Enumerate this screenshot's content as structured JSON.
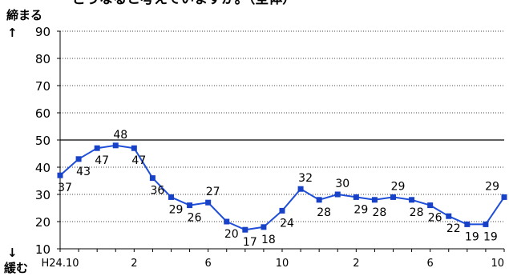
{
  "title": "どうなると考えていますか。（全体）",
  "axis": {
    "top_label": "締まる",
    "top_arrow": "↑",
    "bottom_label": "緩む",
    "bottom_arrow": "↓"
  },
  "colors": {
    "line": "#1f4ed8",
    "marker": "#1742c8",
    "reference_line": "#000000",
    "grid": "#000000",
    "text": "#000000"
  },
  "chart_data": {
    "type": "line",
    "title": "どうなると考えていますか。（全体）",
    "ylim": [
      10,
      90
    ],
    "yticks": [
      10,
      20,
      30,
      40,
      50,
      60,
      70,
      80,
      90
    ],
    "grid": "dotted horizontal",
    "reference_line": 50,
    "x_tick_labels": [
      {
        "index": 0,
        "label": "H24.10"
      },
      {
        "index": 4,
        "label": "2"
      },
      {
        "index": 8,
        "label": "6"
      },
      {
        "index": 12,
        "label": "10"
      },
      {
        "index": 16,
        "label": "2"
      },
      {
        "index": 20,
        "label": "6"
      },
      {
        "index": 24,
        "label": "10"
      }
    ],
    "series": [
      {
        "values": [
          37,
          43,
          47,
          48,
          47,
          36,
          29,
          26,
          27,
          20,
          17,
          18,
          24,
          32,
          28,
          30,
          29,
          28,
          29,
          28,
          26,
          22,
          19,
          19,
          29
        ]
      }
    ]
  }
}
